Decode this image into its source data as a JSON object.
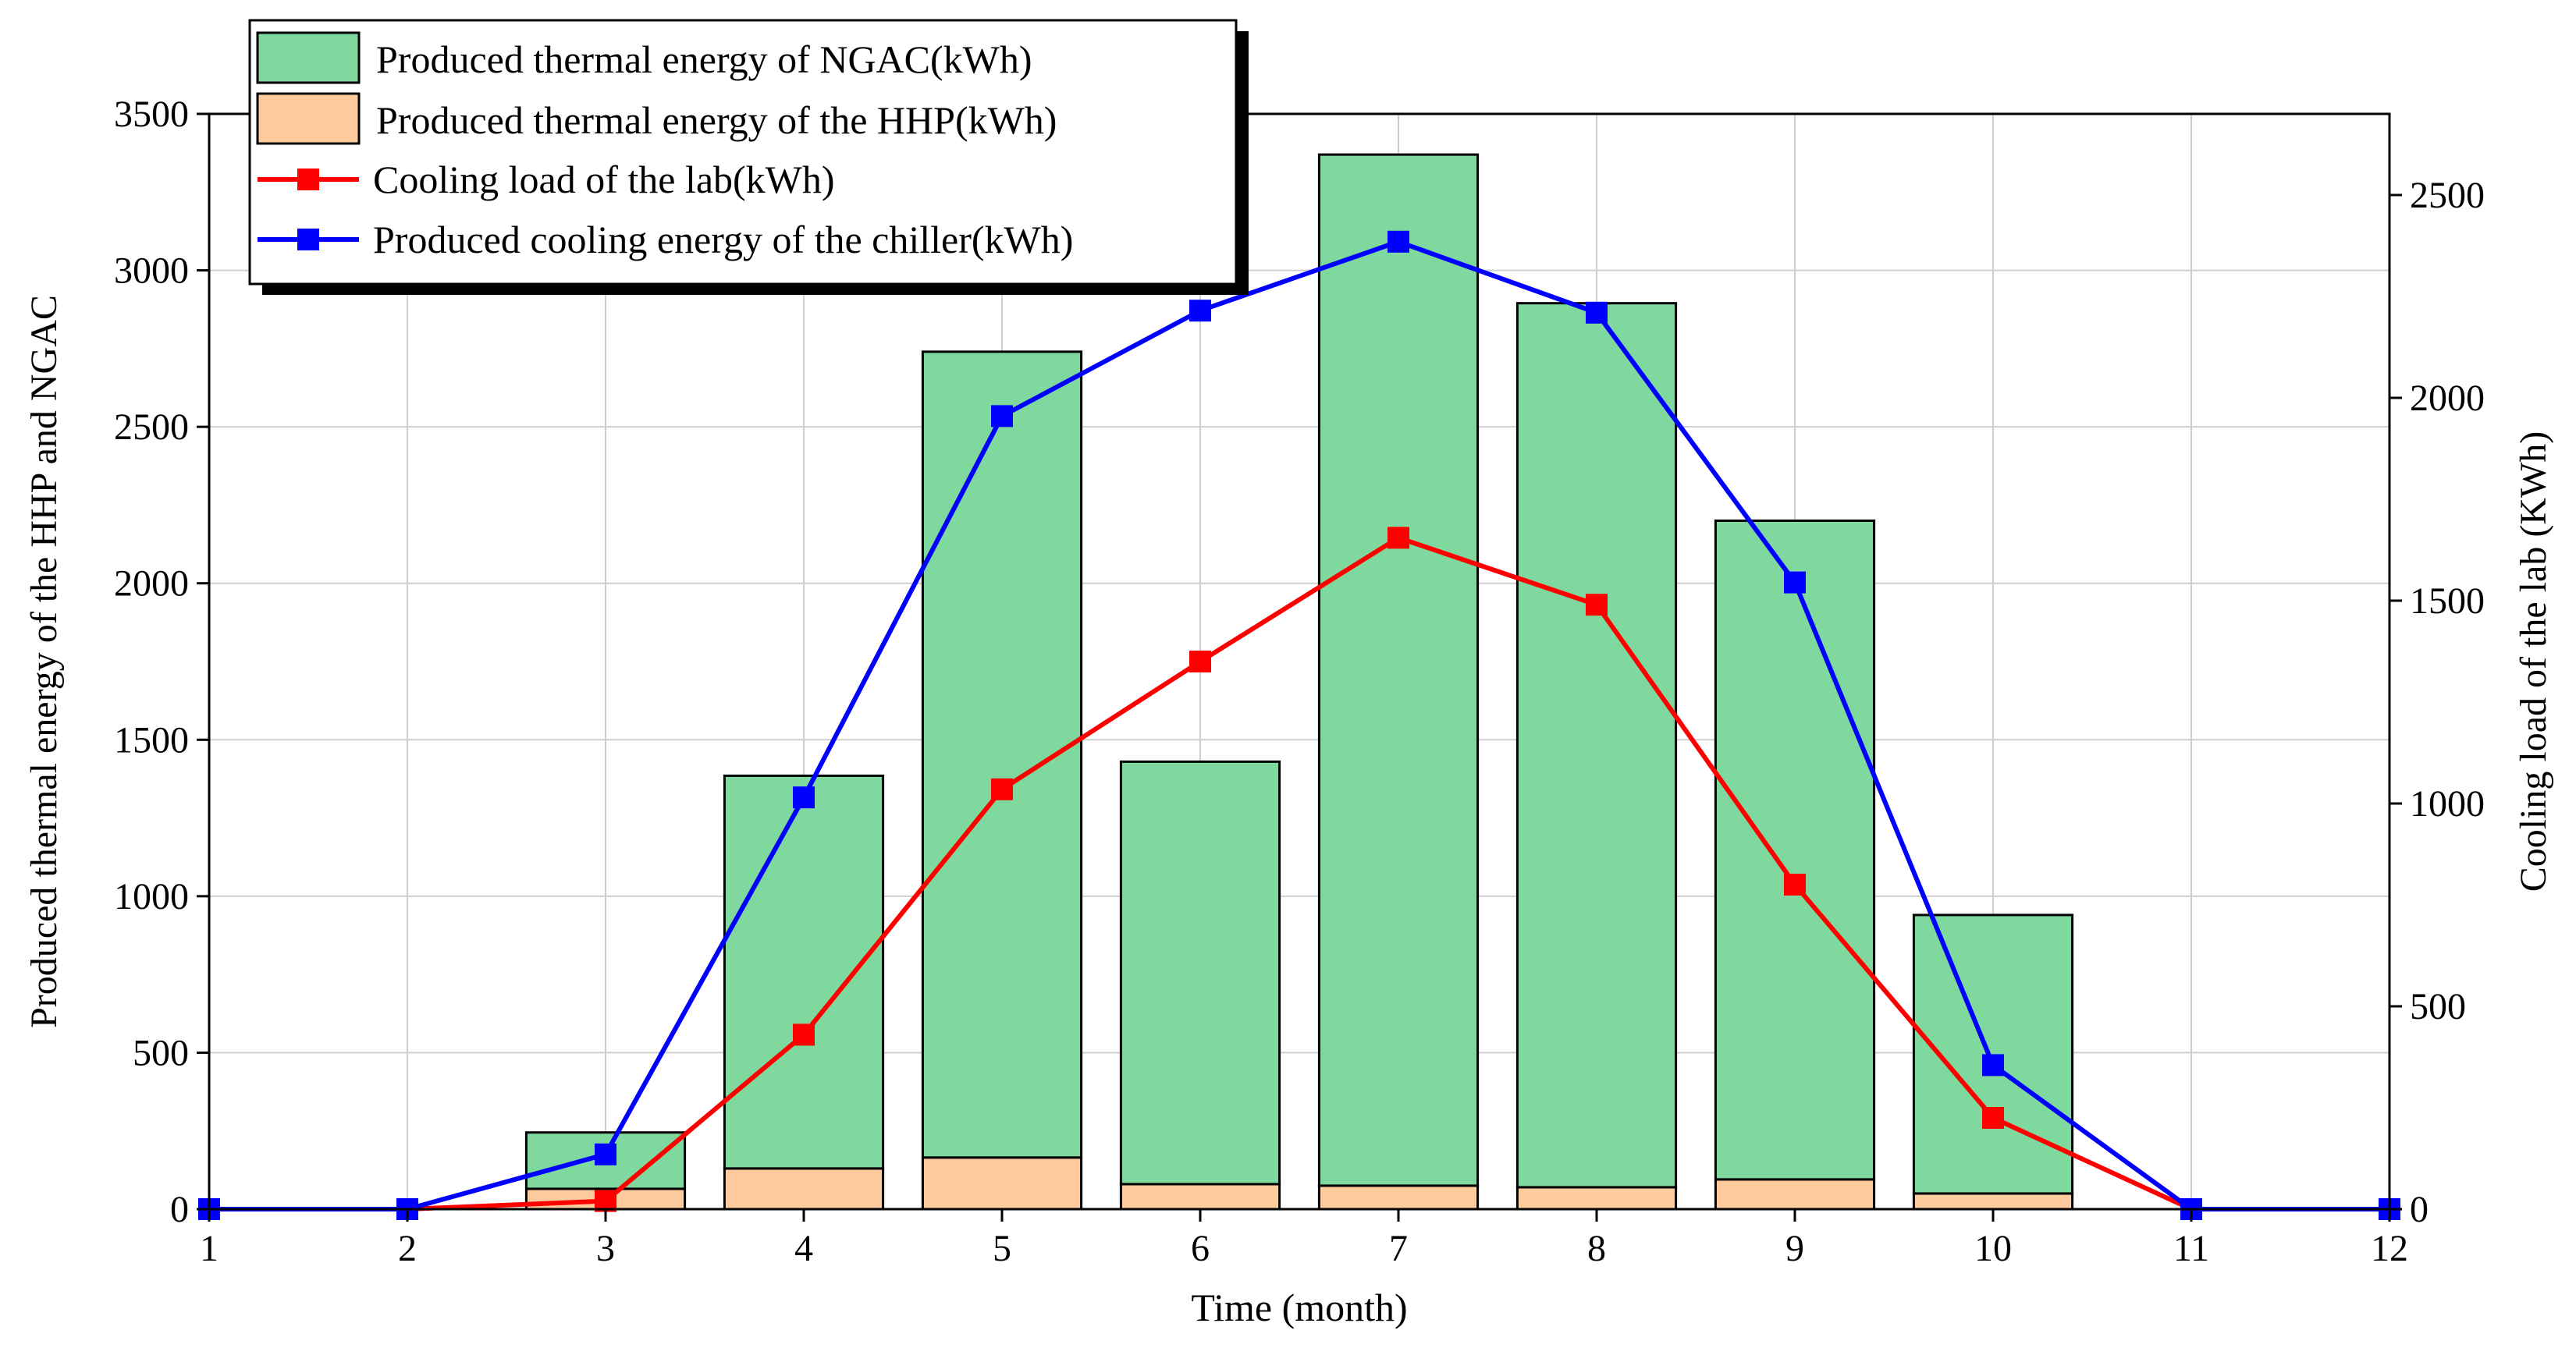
{
  "chart_data": {
    "type": "bar",
    "stacked": true,
    "grid": true,
    "x_ticks": [
      1,
      2,
      3,
      4,
      5,
      6,
      7,
      8,
      9,
      10,
      11,
      12
    ],
    "xlabel": "Time (month)",
    "ylabel_left": "Produced thermal energy of the HHP and NGAC",
    "ylabel_right": "Cooling load of the lab (KWh)",
    "xlim": [
      1,
      12
    ],
    "ylim_left": [
      0,
      3500
    ],
    "ylim_right": [
      0,
      2700
    ],
    "y_ticks_left": [
      0,
      500,
      1000,
      1500,
      2000,
      2500,
      3000,
      3500
    ],
    "y_ticks_right": [
      0,
      500,
      1000,
      1500,
      2000,
      2500
    ],
    "legend_position": "top-left",
    "bar_series": [
      {
        "name": "Produced thermal energy of the HHP(kWh)",
        "color": "#fdcb9d",
        "x": [
          3,
          4,
          5,
          6,
          7,
          8,
          9,
          10
        ],
        "values": [
          65,
          130,
          165,
          80,
          75,
          70,
          95,
          50
        ]
      },
      {
        "name": "Produced thermal energy of NGAC(kWh)",
        "color": "#7fd89d",
        "x": [
          3,
          4,
          5,
          6,
          7,
          8,
          9,
          10
        ],
        "values": [
          180,
          1255,
          2575,
          1350,
          3295,
          2825,
          2105,
          890
        ]
      }
    ],
    "line_series": [
      {
        "name": "Cooling load of the lab(kWh)",
        "color": "#ff0000",
        "axis": "right",
        "x": [
          1,
          2,
          3,
          4,
          5,
          6,
          7,
          8,
          9,
          10,
          11,
          12
        ],
        "values": [
          0,
          0,
          20,
          430,
          1035,
          1350,
          1655,
          1490,
          800,
          225,
          0,
          0
        ]
      },
      {
        "name": "Produced cooling energy of the chiller(kWh)",
        "color": "#0000ff",
        "axis": "right",
        "x": [
          1,
          2,
          3,
          4,
          5,
          6,
          7,
          8,
          9,
          10,
          11,
          12
        ],
        "values": [
          0,
          0,
          135,
          1015,
          1955,
          2215,
          2385,
          2210,
          1545,
          355,
          0,
          0
        ]
      }
    ]
  }
}
